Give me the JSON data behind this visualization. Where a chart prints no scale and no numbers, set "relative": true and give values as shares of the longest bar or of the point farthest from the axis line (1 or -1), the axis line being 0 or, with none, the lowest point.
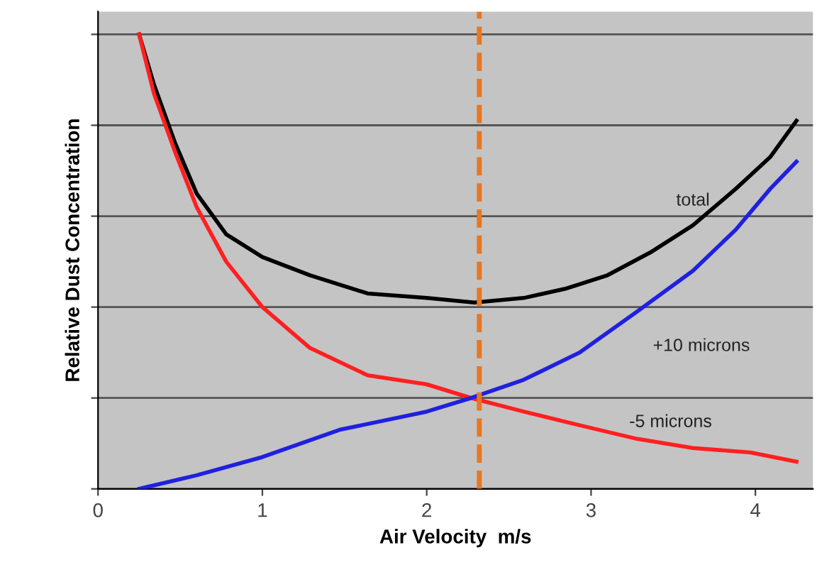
{
  "chart_data": {
    "type": "line",
    "relative": true,
    "xlabel": "Air Velocity  m/s",
    "ylabel": "Relative Dust Concentration",
    "xlim": [
      0,
      4.35
    ],
    "xticks": [
      0,
      1,
      2,
      3,
      4
    ],
    "grid": "y",
    "legend": false,
    "marker": "none",
    "line_style": "solid",
    "series": [
      {
        "name": "total",
        "color": "#000000",
        "x": [
          0.25,
          0.34,
          0.47,
          0.6,
          0.78,
          1.0,
          1.29,
          1.64,
          2.0,
          2.29,
          2.59,
          2.84,
          3.1,
          3.36,
          3.62,
          3.88,
          4.09,
          4.25
        ],
        "values": [
          1.0,
          0.89,
          0.76,
          0.65,
          0.56,
          0.51,
          0.47,
          0.43,
          0.42,
          0.41,
          0.42,
          0.44,
          0.47,
          0.52,
          0.58,
          0.66,
          0.73,
          0.81
        ]
      },
      {
        "name": "-5 microns",
        "color": "#ff2020",
        "x": [
          0.25,
          0.34,
          0.47,
          0.6,
          0.78,
          1.0,
          1.29,
          1.64,
          2.0,
          2.27,
          2.59,
          2.93,
          3.28,
          3.62,
          3.97,
          4.25
        ],
        "values": [
          1.0,
          0.87,
          0.74,
          0.62,
          0.5,
          0.4,
          0.31,
          0.25,
          0.23,
          0.2,
          0.17,
          0.14,
          0.11,
          0.09,
          0.08,
          0.06
        ]
      },
      {
        "name": "+10 microns",
        "color": "#2020e0",
        "x": [
          0.25,
          0.6,
          1.0,
          1.47,
          2.0,
          2.27,
          2.59,
          2.93,
          3.28,
          3.62,
          3.88,
          4.09,
          4.25
        ],
        "values": [
          0.0,
          0.03,
          0.07,
          0.13,
          0.17,
          0.2,
          0.24,
          0.3,
          0.39,
          0.48,
          0.57,
          0.66,
          0.72
        ]
      }
    ],
    "ref_lines": [
      {
        "axis": "x",
        "value": 2.32,
        "color": "#e87722",
        "line_style": "dashed"
      }
    ]
  }
}
